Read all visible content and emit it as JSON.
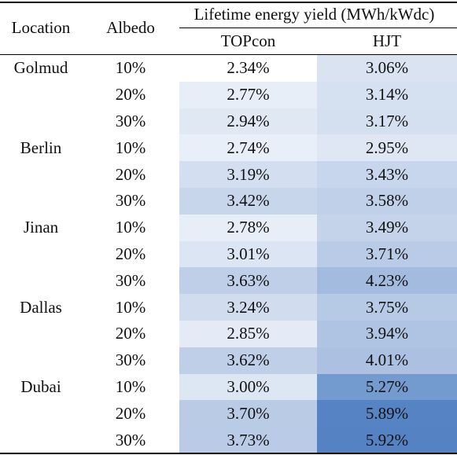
{
  "headers": {
    "location": "Location",
    "albedo": "Albedo",
    "group": "Lifetime energy yield (MWh/kWdc)",
    "col1": "TOPcon",
    "col2": "HJT"
  },
  "rows": [
    {
      "location": "Golmud",
      "albedo": "10%",
      "topcon": "2.34%",
      "hjt": "3.06%",
      "topcon_bg": "#ffffff",
      "hjt_bg": "#d9e3f2"
    },
    {
      "location": "",
      "albedo": "20%",
      "topcon": "2.77%",
      "hjt": "3.14%",
      "topcon_bg": "#e8eef7",
      "hjt_bg": "#d5e0f1"
    },
    {
      "location": "",
      "albedo": "30%",
      "topcon": "2.94%",
      "hjt": "3.17%",
      "topcon_bg": "#e0e8f4",
      "hjt_bg": "#d4dff0"
    },
    {
      "location": "Berlin",
      "albedo": "10%",
      "topcon": "2.74%",
      "hjt": "2.95%",
      "topcon_bg": "#e9eff8",
      "hjt_bg": "#dfe7f4"
    },
    {
      "location": "",
      "albedo": "20%",
      "topcon": "3.19%",
      "hjt": "3.43%",
      "topcon_bg": "#d3def0",
      "hjt_bg": "#c7d6ec"
    },
    {
      "location": "",
      "albedo": "30%",
      "topcon": "3.42%",
      "hjt": "3.58%",
      "topcon_bg": "#c8d6ec",
      "hjt_bg": "#c0d0e9"
    },
    {
      "location": "Jinan",
      "albedo": "10%",
      "topcon": "2.78%",
      "hjt": "3.49%",
      "topcon_bg": "#e8eef7",
      "hjt_bg": "#c4d3ea"
    },
    {
      "location": "",
      "albedo": "20%",
      "topcon": "3.01%",
      "hjt": "3.71%",
      "topcon_bg": "#dce5f3",
      "hjt_bg": "#b9cbe6"
    },
    {
      "location": "",
      "albedo": "30%",
      "topcon": "3.63%",
      "hjt": "4.23%",
      "topcon_bg": "#bfcfe8",
      "hjt_bg": "#a2bbde"
    },
    {
      "location": "Dallas",
      "albedo": "10%",
      "topcon": "3.24%",
      "hjt": "3.75%",
      "topcon_bg": "#d1ddef",
      "hjt_bg": "#b7cae5"
    },
    {
      "location": "",
      "albedo": "20%",
      "topcon": "2.85%",
      "hjt": "3.94%",
      "topcon_bg": "#e4ebf6",
      "hjt_bg": "#afc4e2"
    },
    {
      "location": "",
      "albedo": "30%",
      "topcon": "3.62%",
      "hjt": "4.01%",
      "topcon_bg": "#bfcfe8",
      "hjt_bg": "#acc1e1"
    },
    {
      "location": "Dubai",
      "albedo": "10%",
      "topcon": "3.00%",
      "hjt": "5.27%",
      "topcon_bg": "#dde6f3",
      "hjt_bg": "#749bcf"
    },
    {
      "location": "",
      "albedo": "20%",
      "topcon": "3.70%",
      "hjt": "5.89%",
      "topcon_bg": "#bacbe6",
      "hjt_bg": "#5683c3"
    },
    {
      "location": "",
      "albedo": "30%",
      "topcon": "3.73%",
      "hjt": "5.92%",
      "topcon_bg": "#b9cbe6",
      "hjt_bg": "#5582c2"
    }
  ]
}
